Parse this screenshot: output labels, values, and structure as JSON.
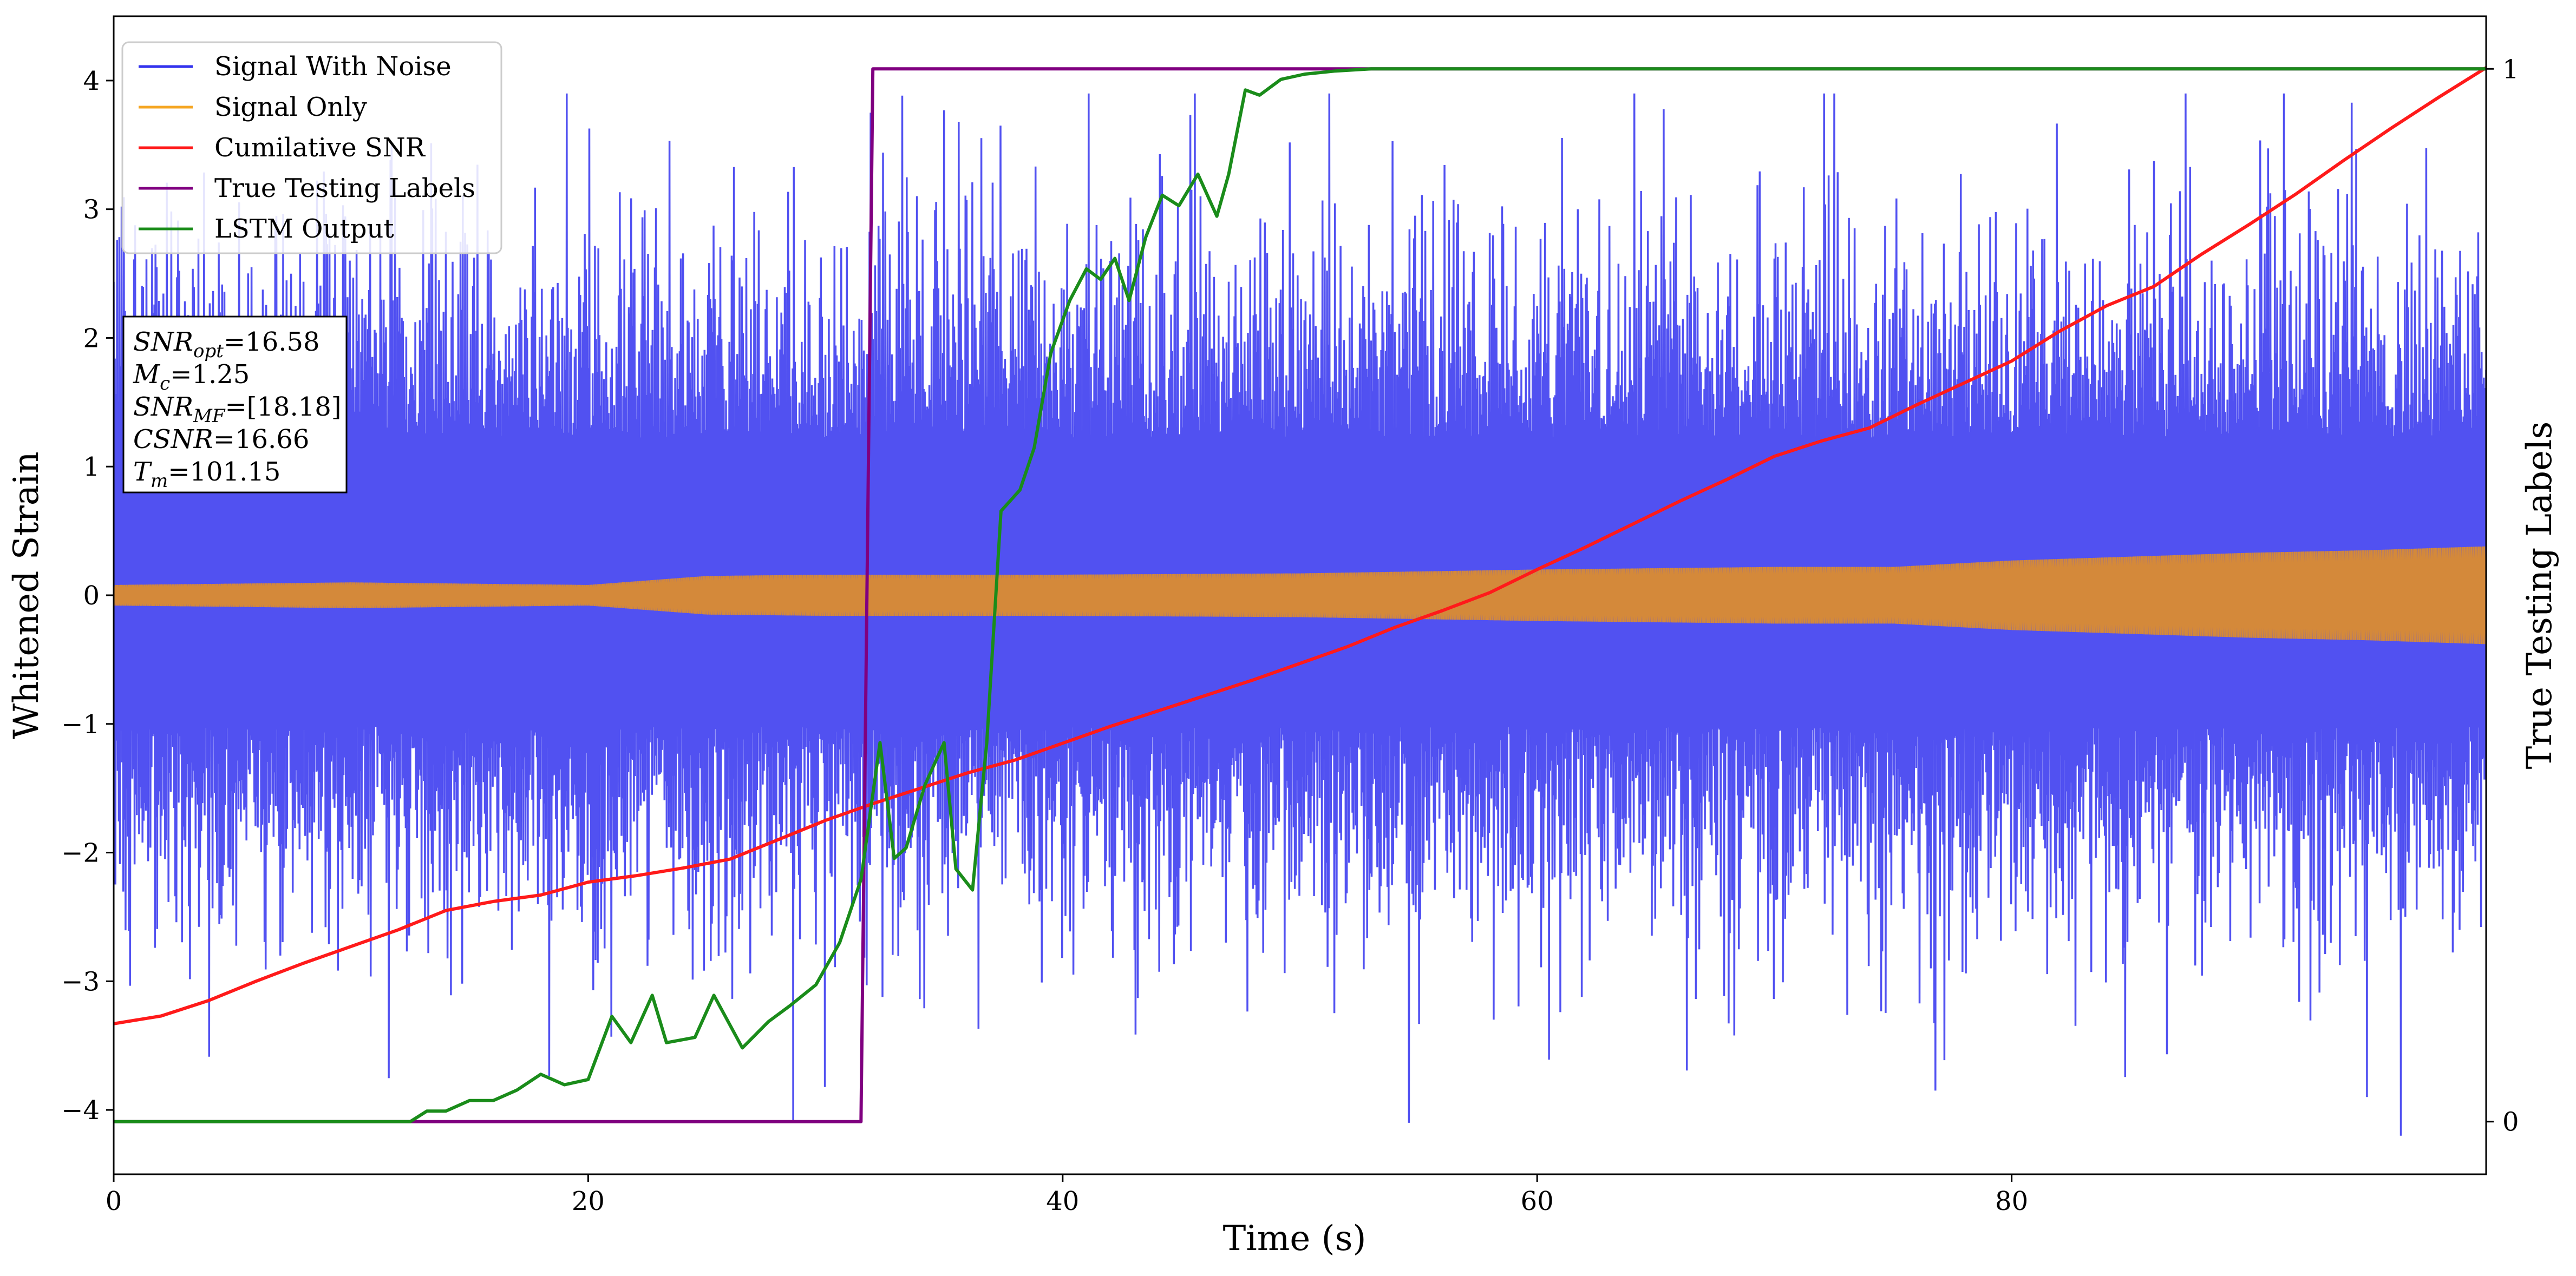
{
  "chart_data": {
    "type": "line",
    "xlabel": "Time (s)",
    "ylabel": "Whitened Strain",
    "y2label": "True Testing Labels",
    "xlim": [
      0,
      100
    ],
    "ylim": [
      -4.5,
      4.5
    ],
    "y2lim": [
      -0.05,
      1.05
    ],
    "x_ticks": [
      0,
      20,
      40,
      60,
      80
    ],
    "y_ticks": [
      -4,
      -3,
      -2,
      -1,
      0,
      1,
      2,
      3,
      4
    ],
    "y2_ticks": [
      0,
      1
    ],
    "grid": false,
    "legend_position": "top-left",
    "legend": [
      {
        "label": "Signal With Noise",
        "color": "#3333ee"
      },
      {
        "label": "Signal Only",
        "color": "#f5a623"
      },
      {
        "label": "Cumilative SNR",
        "color": "#ff1a1a"
      },
      {
        "label": "True Testing Labels",
        "color": "#800080"
      },
      {
        "label": "LSTM Output",
        "color": "#1a8c1a"
      }
    ],
    "stats_box": [
      {
        "base": "SNR",
        "sub": "opt",
        "value": "=16.58"
      },
      {
        "base": "M",
        "sub": "c",
        "value": "=1.25"
      },
      {
        "base": "SNR",
        "sub": "MF",
        "value": "=[18.18]"
      },
      {
        "base": "CSNR",
        "sub": "",
        "value": "=16.66"
      },
      {
        "base": "T",
        "sub": "m",
        "value": "=101.15"
      }
    ],
    "series": [
      {
        "name": "Signal With Noise",
        "axis": "left",
        "color": "#3333ee",
        "style": "dense noise, envelope approx",
        "envelope": {
          "x": [
            0,
            100
          ],
          "upper": [
            2.6,
            2.6
          ],
          "lower": [
            -2.4,
            -2.4
          ]
        },
        "extremes": [
          {
            "x": 31.9,
            "y": 3.75
          },
          {
            "x": 37.4,
            "y": 3.65
          },
          {
            "x": 54.6,
            "y": -4.1
          },
          {
            "x": 76.8,
            "y": -3.85
          },
          {
            "x": 95.0,
            "y": -3.9
          }
        ]
      },
      {
        "name": "Signal Only",
        "axis": "left",
        "color": "#d4893a",
        "style": "oscillating band",
        "envelope": {
          "x": [
            0,
            10,
            20,
            25,
            30,
            40,
            50,
            60,
            70,
            75,
            80,
            85,
            90,
            95,
            100
          ],
          "amplitude": [
            0.08,
            0.1,
            0.08,
            0.15,
            0.16,
            0.16,
            0.17,
            0.2,
            0.22,
            0.22,
            0.27,
            0.3,
            0.33,
            0.35,
            0.38
          ]
        }
      },
      {
        "name": "Cumilative SNR",
        "axis": "left",
        "color": "#ff1a1a",
        "x": [
          0,
          2,
          4,
          6,
          8,
          10,
          12,
          14,
          16,
          18,
          20,
          22,
          24,
          26,
          28,
          30,
          32,
          34,
          36,
          38,
          40,
          42,
          44,
          46,
          48,
          50,
          52,
          54,
          56,
          58,
          60,
          62,
          64,
          66,
          68,
          70,
          72,
          74,
          76,
          78,
          80,
          82,
          84,
          86,
          88,
          90,
          92,
          94,
          96,
          98,
          100
        ],
        "y": [
          -3.33,
          -3.27,
          -3.15,
          -3.0,
          -2.86,
          -2.73,
          -2.6,
          -2.45,
          -2.38,
          -2.33,
          -2.23,
          -2.18,
          -2.12,
          -2.05,
          -1.9,
          -1.75,
          -1.62,
          -1.5,
          -1.38,
          -1.28,
          -1.15,
          -1.02,
          -0.9,
          -0.78,
          -0.66,
          -0.53,
          -0.4,
          -0.25,
          -0.12,
          0.02,
          0.2,
          0.37,
          0.55,
          0.73,
          0.9,
          1.08,
          1.2,
          1.3,
          1.48,
          1.65,
          1.82,
          2.05,
          2.25,
          2.4,
          2.65,
          2.88,
          3.12,
          3.38,
          3.63,
          3.87,
          4.1
        ]
      },
      {
        "name": "True Testing Labels",
        "axis": "right",
        "color": "#800080",
        "x": [
          0,
          31.5,
          32.0,
          100
        ],
        "y": [
          0,
          0,
          1,
          1
        ]
      },
      {
        "name": "LSTM Output",
        "axis": "right",
        "color": "#1a8c1a",
        "x": [
          0,
          12.5,
          13.2,
          14,
          15,
          16,
          17,
          18,
          19,
          20,
          21,
          21.8,
          22.7,
          23.3,
          24.5,
          25.3,
          26.5,
          27.6,
          28.5,
          29.6,
          30.6,
          31.5,
          32.3,
          32.9,
          33.4,
          34.2,
          35.0,
          35.5,
          36.2,
          36.8,
          37.4,
          38.2,
          38.8,
          39.5,
          40.3,
          41.0,
          41.6,
          42.2,
          42.8,
          43.5,
          44.2,
          44.9,
          45.7,
          46.5,
          47.0,
          47.7,
          48.3,
          49.2,
          50.2,
          51.5,
          53.0,
          54.5,
          60,
          70,
          80,
          90,
          100
        ],
        "y": [
          0,
          0,
          0.01,
          0.01,
          0.02,
          0.02,
          0.03,
          0.045,
          0.035,
          0.04,
          0.1,
          0.075,
          0.12,
          0.075,
          0.08,
          0.12,
          0.07,
          0.095,
          0.11,
          0.13,
          0.17,
          0.23,
          0.36,
          0.25,
          0.26,
          0.32,
          0.36,
          0.24,
          0.22,
          0.36,
          0.58,
          0.6,
          0.64,
          0.73,
          0.78,
          0.81,
          0.8,
          0.82,
          0.78,
          0.84,
          0.88,
          0.87,
          0.9,
          0.86,
          0.9,
          0.98,
          0.975,
          0.99,
          0.995,
          0.998,
          1.0,
          1.0,
          1.0,
          1.0,
          1.0,
          1.0,
          1.0
        ]
      }
    ]
  }
}
